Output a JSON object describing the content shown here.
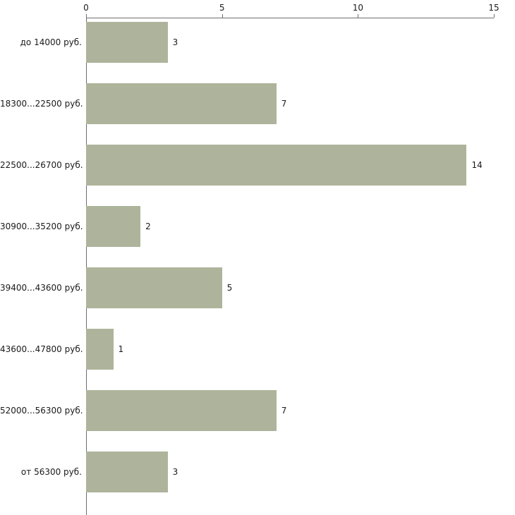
{
  "chart_data": {
    "type": "bar",
    "orientation": "horizontal",
    "title": "",
    "xlabel": "",
    "ylabel": "",
    "categories": [
      "до 14000 руб.",
      "18300...22500 руб.",
      "22500...26700 руб.",
      "30900...35200 руб.",
      "39400...43600 руб.",
      "43600...47800 руб.",
      "52000...56300 руб.",
      "от 56300 руб."
    ],
    "values": [
      3,
      7,
      14,
      2,
      5,
      1,
      7,
      3
    ],
    "xlim": [
      0,
      15
    ],
    "x_ticks": [
      0,
      5,
      10,
      15
    ],
    "grid": false,
    "legend": false,
    "axis_position": "top",
    "colors": {
      "bar_fill": "#adb49b",
      "axis_line": "#6e6e6e",
      "text": "#1a1a1a",
      "background": "#ffffff"
    }
  }
}
